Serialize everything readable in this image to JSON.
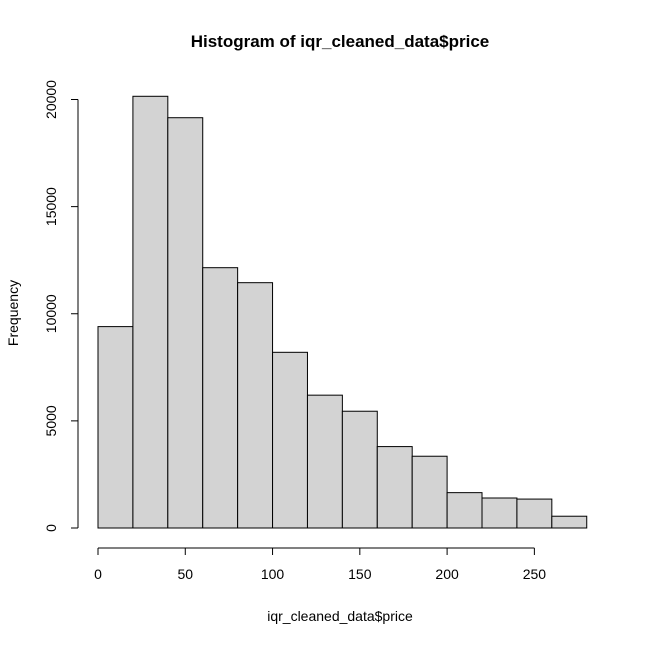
{
  "chart_data": {
    "type": "bar",
    "title": "Histogram of iqr_cleaned_data$price",
    "xlabel": "iqr_cleaned_data$price",
    "ylabel": "Frequency",
    "bins": [
      {
        "x0": 0,
        "x1": 20,
        "count": 9400
      },
      {
        "x0": 20,
        "x1": 40,
        "count": 20150
      },
      {
        "x0": 40,
        "x1": 60,
        "count": 19150
      },
      {
        "x0": 60,
        "x1": 80,
        "count": 12150
      },
      {
        "x0": 80,
        "x1": 100,
        "count": 11450
      },
      {
        "x0": 100,
        "x1": 120,
        "count": 8200
      },
      {
        "x0": 120,
        "x1": 140,
        "count": 6200
      },
      {
        "x0": 140,
        "x1": 160,
        "count": 5450
      },
      {
        "x0": 160,
        "x1": 180,
        "count": 3800
      },
      {
        "x0": 180,
        "x1": 200,
        "count": 3350
      },
      {
        "x0": 200,
        "x1": 220,
        "count": 1650
      },
      {
        "x0": 220,
        "x1": 240,
        "count": 1400
      },
      {
        "x0": 240,
        "x1": 260,
        "count": 1350
      },
      {
        "x0": 260,
        "x1": 280,
        "count": 550
      }
    ],
    "xticks": [
      0,
      50,
      100,
      150,
      200,
      250
    ],
    "yticks": [
      0,
      5000,
      10000,
      15000,
      20000
    ],
    "xlim": [
      0,
      280
    ],
    "ylim": [
      0,
      20000
    ],
    "bar_color": "#d3d3d3",
    "edge_color": "#000000",
    "grid": false,
    "legend": "none"
  }
}
